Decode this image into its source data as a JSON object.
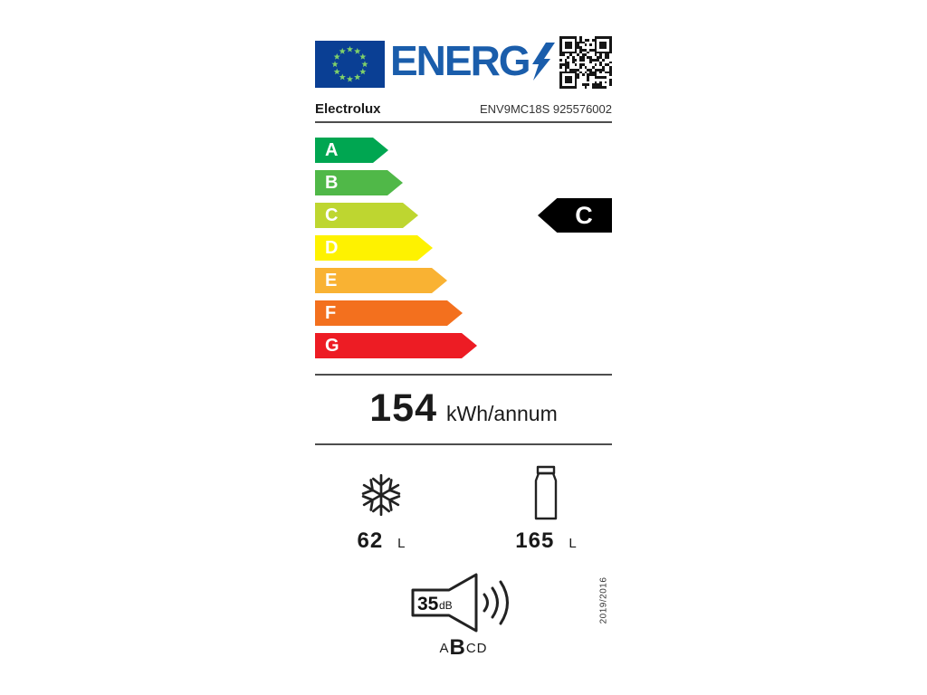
{
  "header": {
    "logo_text": "ENERG",
    "eu_flag": "eu-flag",
    "qr": "qr-code"
  },
  "brand": {
    "name": "Electrolux",
    "model": "ENV9MC18S 925576002"
  },
  "scale": {
    "classes": [
      {
        "letter": "A",
        "color": "#00a651"
      },
      {
        "letter": "B",
        "color": "#50b848"
      },
      {
        "letter": "C",
        "color": "#bed630"
      },
      {
        "letter": "D",
        "color": "#fef200"
      },
      {
        "letter": "E",
        "color": "#f9b233"
      },
      {
        "letter": "F",
        "color": "#f3701e"
      },
      {
        "letter": "G",
        "color": "#ed1c24"
      }
    ],
    "rating": "C"
  },
  "energy": {
    "value": "154",
    "unit": "kWh/annum"
  },
  "compartments": {
    "freezer": {
      "value": "62",
      "unit": "L"
    },
    "fridge": {
      "value": "165",
      "unit": "L"
    }
  },
  "noise": {
    "value": "35",
    "unit": "dB",
    "classes": [
      "A",
      "B",
      "C",
      "D"
    ],
    "selected": "B"
  },
  "regulation": "2019/2016",
  "colors": {
    "eu_blue": "#0a3f94",
    "logo_blue": "#1a5dab",
    "star_green": "#7fd069",
    "rating_bg": "#000000"
  }
}
